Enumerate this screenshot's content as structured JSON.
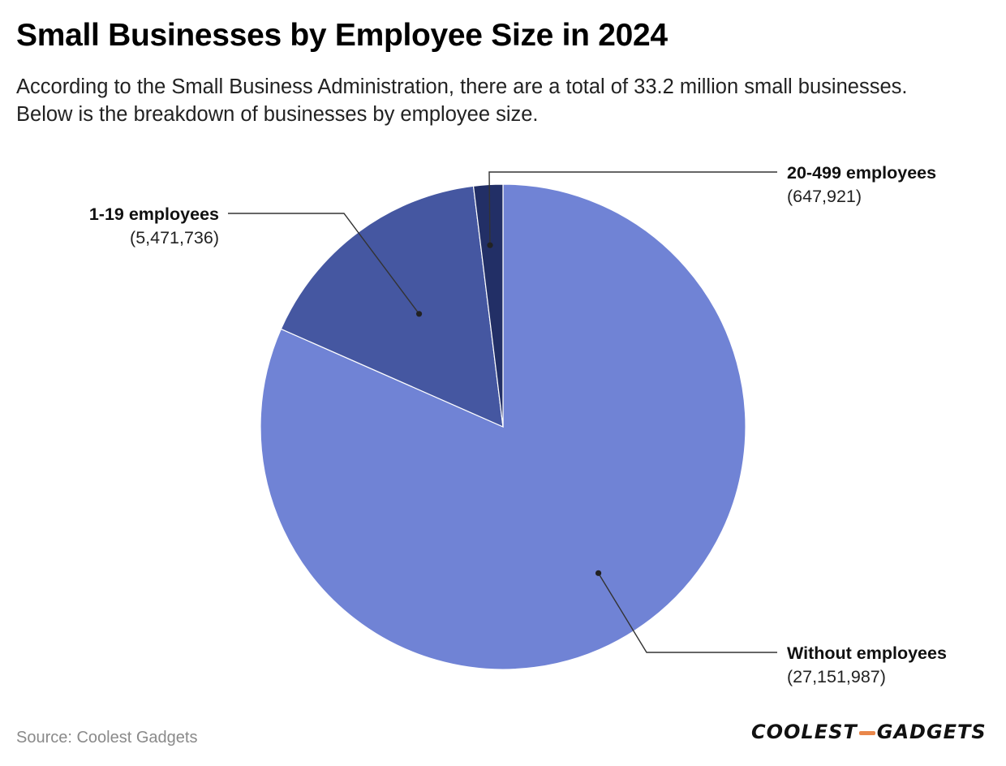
{
  "chart_data": {
    "type": "pie",
    "title": "Small Businesses by Employee Size in 2024",
    "subtitle": "According to the Small Business Administration, there are a total of 33.2 million small businesses. Below is the breakdown of businesses by employee size.",
    "slices": [
      {
        "label": "Without employees",
        "value": 27151987,
        "display": "(27,151,987)",
        "color": "#7083d5"
      },
      {
        "label": "1-19 employees",
        "value": 5471736,
        "display": "(5,471,736)",
        "color": "#4557a1"
      },
      {
        "label": "20-499 employees",
        "value": 647921,
        "display": "(647,921)",
        "color": "#222f66"
      }
    ],
    "start": "12 o'clock, clockwise",
    "legend": "none (callout labels)"
  },
  "footer": {
    "source": "Source: Coolest Gadgets",
    "logo_left": "COOLEST",
    "logo_right": "GADGETS"
  }
}
